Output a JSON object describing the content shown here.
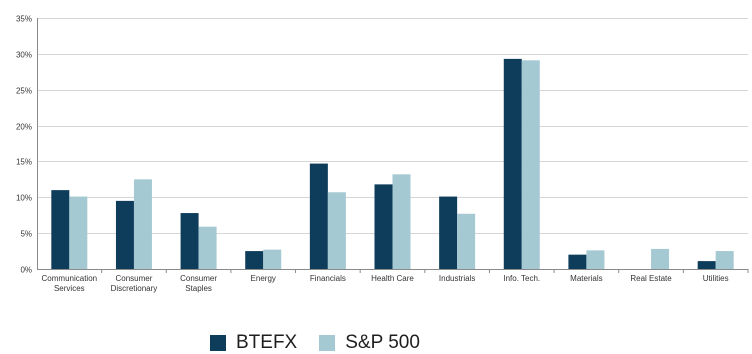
{
  "chart_data": {
    "type": "bar",
    "categories": [
      [
        "Communication",
        "Services"
      ],
      [
        "Consumer",
        "Discretionary"
      ],
      [
        "Consumer",
        "Staples"
      ],
      [
        "Energy"
      ],
      [
        "Financials"
      ],
      [
        "Health Care"
      ],
      [
        "Industrials"
      ],
      [
        "Info. Tech."
      ],
      [
        "Materials"
      ],
      [
        "Real Estate"
      ],
      [
        "Utilities"
      ]
    ],
    "series": [
      {
        "name": "BTEFX",
        "color": "#0e3d5c",
        "values": [
          11.0,
          9.5,
          7.8,
          2.5,
          14.7,
          11.8,
          10.1,
          29.3,
          2.0,
          0,
          1.1
        ]
      },
      {
        "name": "S&P 500",
        "color": "#a4c9d2",
        "values": [
          10.1,
          12.5,
          5.9,
          2.7,
          10.7,
          13.2,
          7.7,
          29.1,
          2.6,
          2.8,
          2.5
        ]
      }
    ],
    "yticks": [
      "0%",
      "5%",
      "10%",
      "15%",
      "20%",
      "25%",
      "30%",
      "35%"
    ],
    "ylim": [
      0,
      35
    ],
    "grid": true,
    "legend_position": "bottom"
  }
}
